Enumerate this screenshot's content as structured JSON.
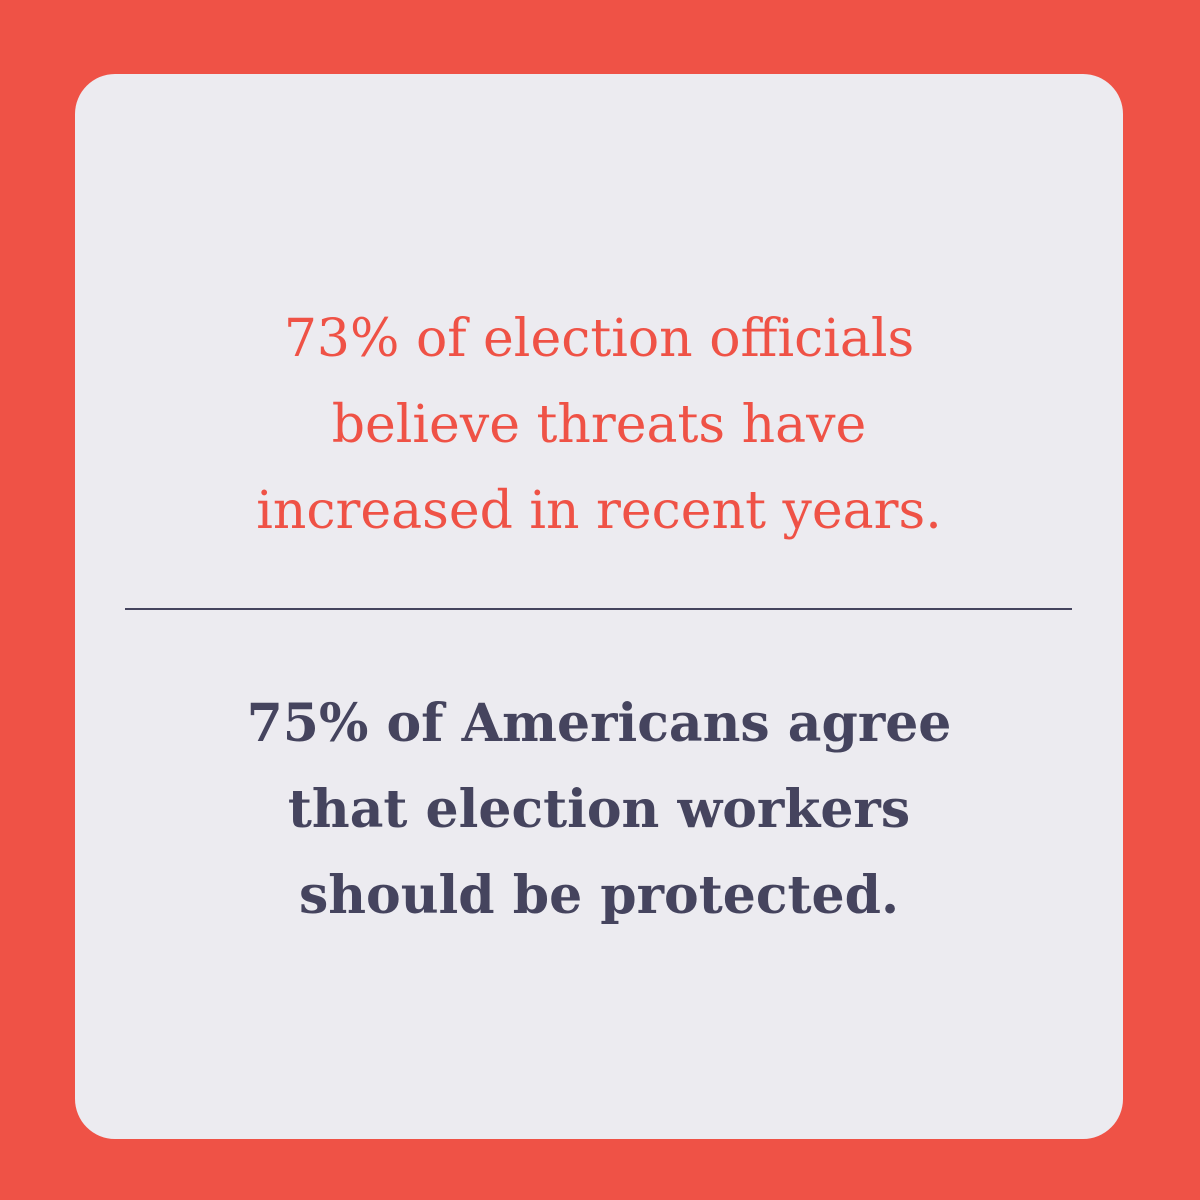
{
  "colors": {
    "background": "#ef5246",
    "card": "#ecebf0",
    "accent": "#ef5246",
    "text_dark": "#45445e"
  },
  "top_stat": {
    "lines": [
      "73% of election officials",
      "believe threats have",
      "increased in recent years."
    ]
  },
  "bottom_stat": {
    "lines": [
      "75% of Americans agree",
      "that election workers",
      "should be protected."
    ]
  }
}
